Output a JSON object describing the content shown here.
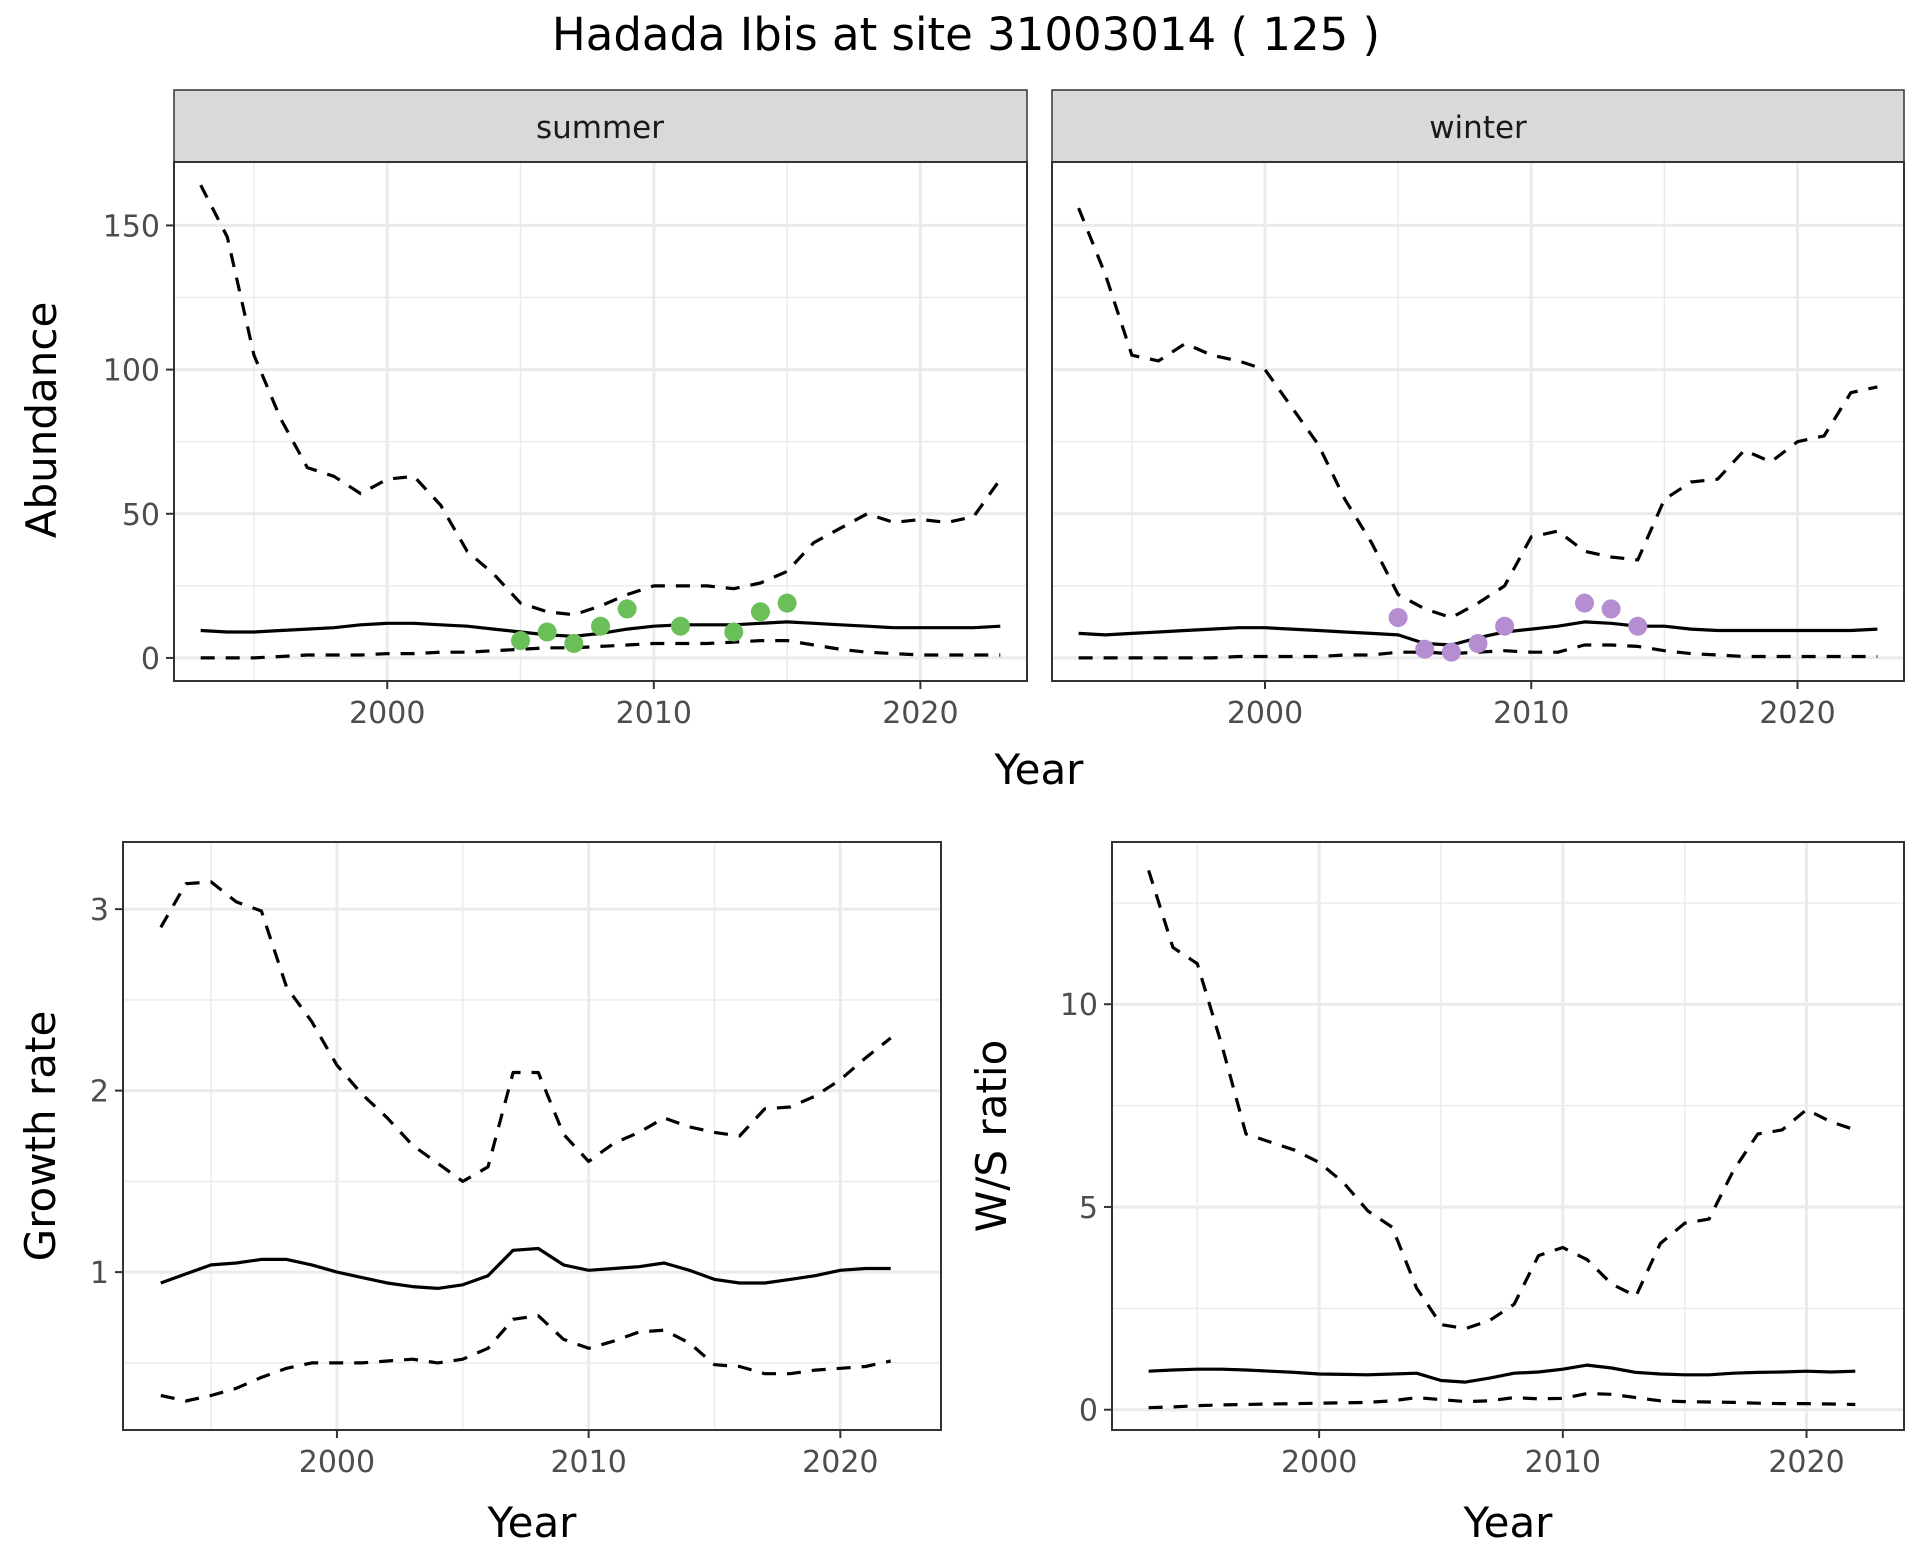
{
  "title": "Hadada Ibis at site 31003014 ( 125 )",
  "colors": {
    "summer_points": "#6BBF59",
    "winter_points": "#B48ED0",
    "lines": "#000000",
    "grid": "#EBEBEB",
    "strip_bg": "#D9D9D9"
  },
  "chart_data": [
    {
      "id": "abundance",
      "type": "line",
      "facets": [
        "summer",
        "winter"
      ],
      "xlabel": "Year",
      "ylabel": "Abundance",
      "xlim": [
        1992,
        2024
      ],
      "ylim": [
        -8,
        172
      ],
      "xticks": [
        2000,
        2010,
        2020
      ],
      "yticks": [
        0,
        50,
        100,
        150
      ],
      "panels": [
        {
          "facet": "summer",
          "mean": {
            "x": [
              1993,
              1994,
              1995,
              1996,
              1997,
              1998,
              1999,
              2000,
              2001,
              2002,
              2003,
              2004,
              2005,
              2006,
              2007,
              2008,
              2009,
              2010,
              2011,
              2012,
              2013,
              2014,
              2015,
              2016,
              2017,
              2018,
              2019,
              2020,
              2021,
              2022,
              2023
            ],
            "y": [
              9.5,
              9,
              9,
              9.5,
              10,
              10.5,
              11.5,
              12,
              12,
              11.5,
              11,
              10,
              9,
              8,
              7.5,
              8.5,
              10,
              11,
              11.5,
              11.5,
              11.5,
              12,
              12.5,
              12,
              11.5,
              11,
              10.5,
              10.5,
              10.5,
              10.5,
              11
            ]
          },
          "upper": {
            "x": [
              1993,
              1994,
              1995,
              1996,
              1997,
              1998,
              1999,
              2000,
              2001,
              2002,
              2003,
              2004,
              2005,
              2006,
              2007,
              2008,
              2009,
              2010,
              2011,
              2012,
              2013,
              2014,
              2015,
              2016,
              2017,
              2018,
              2019,
              2020,
              2021,
              2022,
              2023
            ],
            "y": [
              164,
              146,
              105,
              83,
              66,
              63,
              57,
              62,
              63,
              53,
              37,
              29,
              19,
              16,
              15,
              18,
              22,
              25,
              25,
              25,
              24,
              26,
              30,
              40,
              45,
              50,
              47,
              48,
              47,
              49,
              62
            ]
          },
          "lower": {
            "x": [
              1993,
              1994,
              1995,
              1996,
              1997,
              1998,
              1999,
              2000,
              2001,
              2002,
              2003,
              2004,
              2005,
              2006,
              2007,
              2008,
              2009,
              2010,
              2011,
              2012,
              2013,
              2014,
              2015,
              2016,
              2017,
              2018,
              2019,
              2020,
              2021,
              2022,
              2023
            ],
            "y": [
              0,
              0,
              0,
              0.5,
              1,
              1,
              1,
              1.5,
              1.5,
              2,
              2,
              2.5,
              3,
              3.5,
              3.5,
              4,
              4.5,
              5,
              5,
              5,
              5.5,
              6,
              6,
              4.5,
              3,
              2,
              1.5,
              1,
              1,
              1,
              1
            ]
          },
          "observed": {
            "x": [
              2005,
              2006,
              2007,
              2008,
              2009,
              2011,
              2013,
              2014,
              2015
            ],
            "y": [
              6,
              9,
              5,
              11,
              17,
              11,
              9,
              16,
              19
            ]
          }
        },
        {
          "facet": "winter",
          "mean": {
            "x": [
              1993,
              1994,
              1995,
              1996,
              1997,
              1998,
              1999,
              2000,
              2001,
              2002,
              2003,
              2004,
              2005,
              2006,
              2007,
              2008,
              2009,
              2010,
              2011,
              2012,
              2013,
              2014,
              2015,
              2016,
              2017,
              2018,
              2019,
              2020,
              2021,
              2022,
              2023
            ],
            "y": [
              8.5,
              8,
              8.5,
              9,
              9.5,
              10,
              10.5,
              10.5,
              10,
              9.5,
              9,
              8.5,
              8,
              5,
              4.5,
              7,
              9,
              10,
              11,
              12.5,
              12,
              11,
              11,
              10,
              9.5,
              9.5,
              9.5,
              9.5,
              9.5,
              9.5,
              10
            ]
          },
          "upper": {
            "x": [
              1993,
              1994,
              1995,
              1996,
              1997,
              1998,
              1999,
              2000,
              2001,
              2002,
              2003,
              2004,
              2005,
              2006,
              2007,
              2008,
              2009,
              2010,
              2011,
              2012,
              2013,
              2014,
              2015,
              2016,
              2017,
              2018,
              2019,
              2020,
              2021,
              2022,
              2023
            ],
            "y": [
              156,
              133,
              105,
              103,
              109,
              105,
              103,
              100,
              87,
              74,
              55,
              40,
              22,
              17,
              14,
              19,
              25,
              42,
              44,
              37,
              35,
              34,
              55,
              61,
              62,
              72,
              68,
              75,
              77,
              92,
              94
            ]
          },
          "lower": {
            "x": [
              1993,
              1994,
              1995,
              1996,
              1997,
              1998,
              1999,
              2000,
              2001,
              2002,
              2003,
              2004,
              2005,
              2006,
              2007,
              2008,
              2009,
              2010,
              2011,
              2012,
              2013,
              2014,
              2015,
              2016,
              2017,
              2018,
              2019,
              2020,
              2021,
              2022,
              2023
            ],
            "y": [
              0,
              0,
              0,
              0,
              0,
              0,
              0.5,
              0.5,
              0.5,
              0.5,
              1,
              1,
              2,
              2,
              1.5,
              2,
              2.5,
              2,
              2,
              4.5,
              4.5,
              4,
              2.5,
              1.5,
              1,
              0.5,
              0.5,
              0.5,
              0.5,
              0.5,
              0.5
            ]
          },
          "observed": {
            "x": [
              2005,
              2006,
              2007,
              2008,
              2009,
              2012,
              2013,
              2014
            ],
            "y": [
              14,
              3,
              2,
              5,
              11,
              19,
              17,
              11
            ]
          }
        }
      ]
    },
    {
      "id": "growth",
      "type": "line",
      "xlabel": "Year",
      "ylabel": "Growth rate",
      "xlim": [
        1991.5,
        2024
      ],
      "ylim": [
        0.13,
        3.37
      ],
      "xticks": [
        2000,
        2010,
        2020
      ],
      "yticks": [
        1,
        2,
        3
      ],
      "mean": {
        "x": [
          1993,
          1994,
          1995,
          1996,
          1997,
          1998,
          1999,
          2000,
          2001,
          2002,
          2003,
          2004,
          2005,
          2006,
          2007,
          2008,
          2009,
          2010,
          2011,
          2012,
          2013,
          2014,
          2015,
          2016,
          2017,
          2018,
          2019,
          2020,
          2021,
          2022
        ],
        "y": [
          0.94,
          0.99,
          1.04,
          1.05,
          1.07,
          1.07,
          1.04,
          1.0,
          0.97,
          0.94,
          0.92,
          0.91,
          0.93,
          0.98,
          1.12,
          1.13,
          1.04,
          1.01,
          1.02,
          1.03,
          1.05,
          1.01,
          0.96,
          0.94,
          0.94,
          0.96,
          0.98,
          1.01,
          1.02,
          1.02
        ]
      },
      "upper": {
        "x": [
          1993,
          1994,
          1995,
          1996,
          1997,
          1998,
          1999,
          2000,
          2001,
          2002,
          2003,
          2004,
          2005,
          2006,
          2007,
          2008,
          2009,
          2010,
          2011,
          2012,
          2013,
          2014,
          2015,
          2016,
          2017,
          2018,
          2019,
          2020,
          2021,
          2022
        ],
        "y": [
          2.9,
          3.14,
          3.15,
          3.04,
          2.99,
          2.57,
          2.38,
          2.14,
          1.98,
          1.85,
          1.7,
          1.6,
          1.5,
          1.58,
          2.1,
          2.1,
          1.76,
          1.61,
          1.71,
          1.77,
          1.85,
          1.8,
          1.77,
          1.75,
          1.9,
          1.91,
          1.97,
          2.06,
          2.18,
          2.29
        ]
      },
      "lower": {
        "x": [
          1993,
          1994,
          1995,
          1996,
          1997,
          1998,
          1999,
          2000,
          2001,
          2002,
          2003,
          2004,
          2005,
          2006,
          2007,
          2008,
          2009,
          2010,
          2011,
          2012,
          2013,
          2014,
          2015,
          2016,
          2017,
          2018,
          2019,
          2020,
          2021,
          2022
        ],
        "y": [
          0.32,
          0.29,
          0.32,
          0.36,
          0.42,
          0.47,
          0.5,
          0.5,
          0.5,
          0.51,
          0.52,
          0.5,
          0.52,
          0.58,
          0.74,
          0.76,
          0.63,
          0.58,
          0.62,
          0.67,
          0.68,
          0.61,
          0.49,
          0.48,
          0.44,
          0.44,
          0.46,
          0.47,
          0.48,
          0.51
        ]
      }
    },
    {
      "id": "ratio",
      "type": "line",
      "xlabel": "Year",
      "ylabel": "W/S ratio",
      "xlim": [
        1991.5,
        2024
      ],
      "ylim": [
        -0.5,
        14.0
      ],
      "xticks": [
        2000,
        2010,
        2020
      ],
      "yticks": [
        0,
        5,
        10
      ],
      "mean": {
        "x": [
          1993,
          1994,
          1995,
          1996,
          1997,
          1998,
          1999,
          2000,
          2001,
          2002,
          2003,
          2004,
          2005,
          2006,
          2007,
          2008,
          2009,
          2010,
          2011,
          2012,
          2013,
          2014,
          2015,
          2016,
          2017,
          2018,
          2019,
          2020,
          2021,
          2022
        ],
        "y": [
          0.95,
          0.98,
          1.0,
          1.0,
          0.98,
          0.95,
          0.92,
          0.88,
          0.87,
          0.86,
          0.88,
          0.9,
          0.72,
          0.68,
          0.78,
          0.9,
          0.93,
          1.0,
          1.1,
          1.03,
          0.92,
          0.88,
          0.86,
          0.86,
          0.9,
          0.92,
          0.93,
          0.95,
          0.93,
          0.95
        ]
      },
      "upper": {
        "x": [
          1993,
          1994,
          1995,
          1996,
          1997,
          1998,
          1999,
          2000,
          2001,
          2002,
          2003,
          2004,
          2005,
          2006,
          2007,
          2008,
          2009,
          2010,
          2011,
          2012,
          2013,
          2014,
          2015,
          2016,
          2017,
          2018,
          2019,
          2020,
          2021,
          2022
        ],
        "y": [
          13.3,
          11.4,
          11.0,
          9.0,
          6.8,
          6.6,
          6.4,
          6.1,
          5.6,
          4.9,
          4.5,
          3.0,
          2.1,
          2.0,
          2.2,
          2.6,
          3.8,
          4.0,
          3.7,
          3.1,
          2.8,
          4.1,
          4.6,
          4.7,
          5.9,
          6.8,
          6.9,
          7.4,
          7.1,
          6.9
        ]
      },
      "lower": {
        "x": [
          1993,
          1994,
          1995,
          1996,
          1997,
          1998,
          1999,
          2000,
          2001,
          2002,
          2003,
          2004,
          2005,
          2006,
          2007,
          2008,
          2009,
          2010,
          2011,
          2012,
          2013,
          2014,
          2015,
          2016,
          2017,
          2018,
          2019,
          2020,
          2021,
          2022
        ],
        "y": [
          0.05,
          0.07,
          0.1,
          0.12,
          0.13,
          0.14,
          0.15,
          0.16,
          0.17,
          0.18,
          0.22,
          0.3,
          0.25,
          0.2,
          0.22,
          0.3,
          0.27,
          0.28,
          0.4,
          0.38,
          0.3,
          0.22,
          0.2,
          0.19,
          0.18,
          0.16,
          0.15,
          0.15,
          0.14,
          0.13
        ]
      }
    }
  ]
}
